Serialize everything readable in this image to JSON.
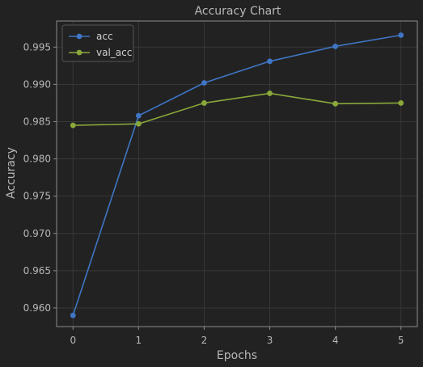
{
  "chart_data": {
    "type": "line",
    "title": "Accuracy Chart",
    "xlabel": "Epochs",
    "ylabel": "Accuracy",
    "x": [
      0,
      1,
      2,
      3,
      4,
      5
    ],
    "xticks": [
      0,
      1,
      2,
      3,
      4,
      5
    ],
    "yticks": [
      0.96,
      0.965,
      0.97,
      0.975,
      0.98,
      0.985,
      0.99,
      0.995
    ],
    "xlim": [
      -0.25,
      5.25
    ],
    "ylim": [
      0.9575,
      0.9985
    ],
    "grid": true,
    "legend_position": "top-left",
    "series": [
      {
        "name": "acc",
        "color": "#3f75c4",
        "values": [
          0.959,
          0.9858,
          0.9902,
          0.9931,
          0.9951,
          0.9966
        ]
      },
      {
        "name": "val_acc",
        "color": "#8aa83a",
        "values": [
          0.9845,
          0.9847,
          0.9875,
          0.9888,
          0.9874,
          0.9875
        ]
      }
    ]
  }
}
